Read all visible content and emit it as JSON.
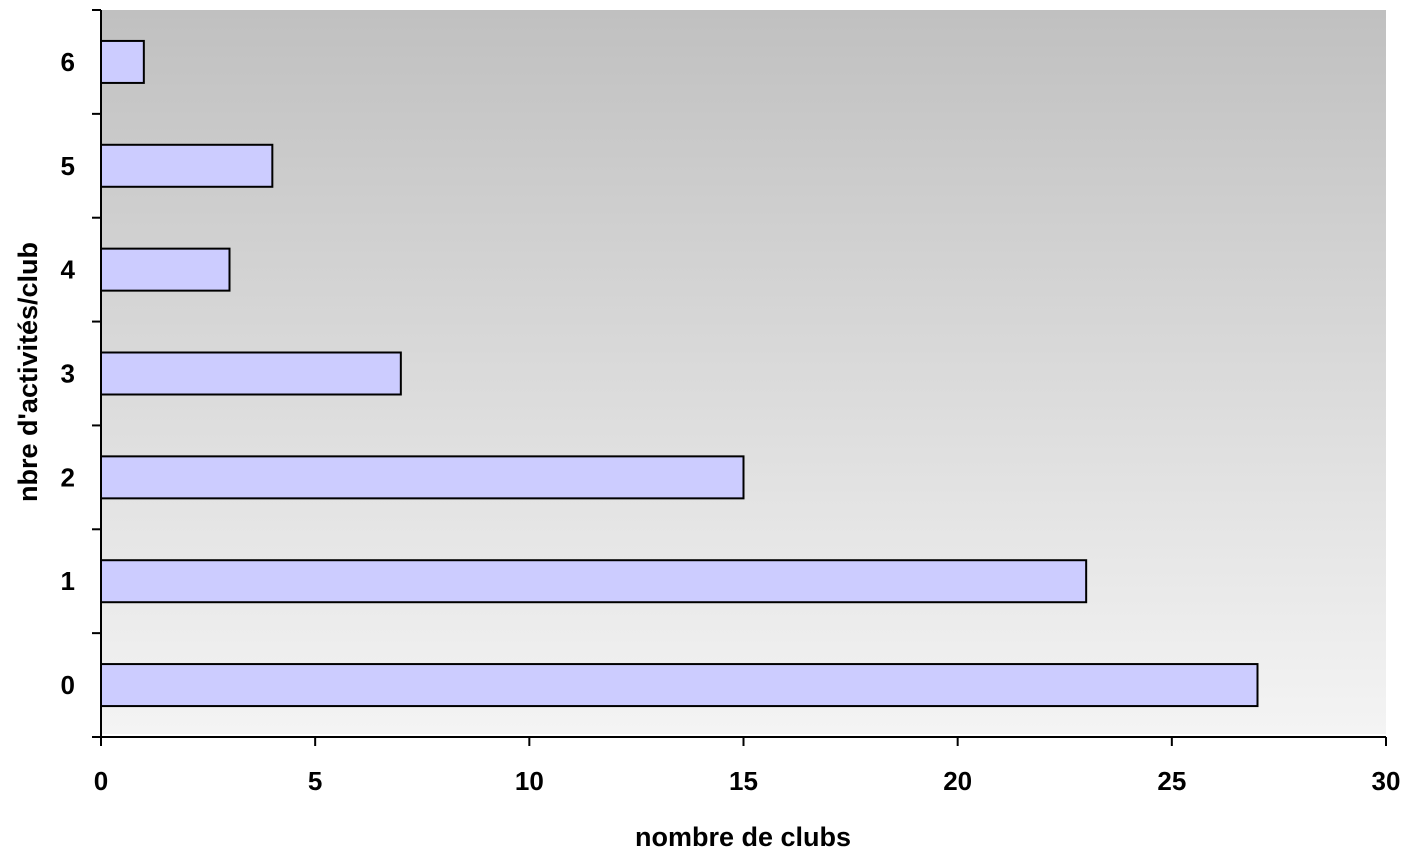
{
  "chart_data": {
    "type": "bar",
    "orientation": "horizontal",
    "categories": [
      "0",
      "1",
      "2",
      "3",
      "4",
      "5",
      "6"
    ],
    "values": [
      27,
      23,
      15,
      7,
      3,
      4,
      1
    ],
    "title": "",
    "xlabel": "nombre de clubs",
    "ylabel": "nbre d'activités/club",
    "xlim": [
      0,
      30
    ],
    "xticks": [
      "0",
      "5",
      "10",
      "15",
      "20",
      "25",
      "30"
    ],
    "grid": false,
    "legend": "none",
    "colors": {
      "bar_fill": "#ccccff",
      "bar_stroke": "#000000",
      "plot_bg_top": "#c0c0c0",
      "plot_bg_bottom": "#f4f4f4"
    }
  }
}
